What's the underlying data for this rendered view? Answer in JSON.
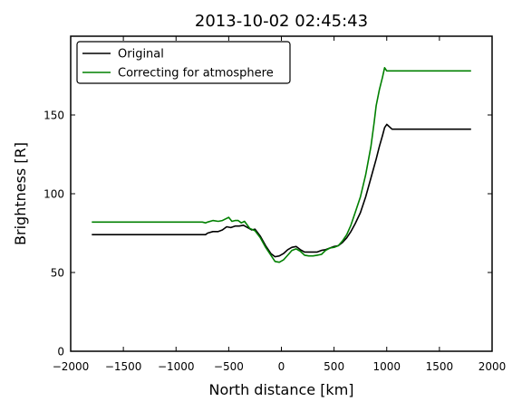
{
  "chart_data": {
    "type": "line",
    "title": "2013-10-02 02:45:43",
    "xlabel": "North distance [km]",
    "ylabel": "Brightness [R]",
    "xlim": [
      -2000,
      2000
    ],
    "ylim": [
      0,
      200
    ],
    "xticks": [
      -2000,
      -1500,
      -1000,
      -500,
      0,
      500,
      1000,
      1500,
      2000
    ],
    "xtick_labels": [
      "−2000",
      "−1500",
      "−1000",
      "−500",
      "0",
      "500",
      "1000",
      "1500",
      "2000"
    ],
    "yticks": [
      0,
      50,
      100,
      150
    ],
    "ytick_labels": [
      "0",
      "50",
      "100",
      "150"
    ],
    "grid": false,
    "legend_position": "upper-left",
    "series": [
      {
        "name": "Original",
        "color": "#000000",
        "x": [
          -1800,
          -1400,
          -1000,
          -720,
          -700,
          -650,
          -600,
          -560,
          -520,
          -480,
          -440,
          -400,
          -360,
          -320,
          -280,
          -250,
          -200,
          -150,
          -100,
          -60,
          -20,
          20,
          60,
          100,
          140,
          180,
          220,
          260,
          300,
          340,
          380,
          420,
          460,
          500,
          540,
          580,
          620,
          660,
          700,
          750,
          800,
          850,
          900,
          930,
          960,
          980,
          1000,
          1050,
          1200,
          1500,
          1800
        ],
        "y": [
          74,
          74,
          74,
          74,
          75,
          76,
          76,
          77,
          79,
          78.5,
          79.5,
          79.5,
          80,
          78.5,
          77,
          77.5,
          73,
          67,
          62,
          60,
          60.5,
          62,
          64.5,
          66,
          66.5,
          64.5,
          63,
          63,
          63,
          63,
          64,
          64.5,
          65.5,
          66.5,
          67,
          69,
          72,
          76,
          81,
          88,
          98,
          110,
          122,
          130,
          137,
          142,
          144,
          141,
          141,
          141,
          141
        ]
      },
      {
        "name": "Correcting for atmosphere",
        "color": "#008000",
        "x": [
          -1800,
          -1400,
          -1000,
          -750,
          -720,
          -700,
          -650,
          -600,
          -560,
          -530,
          -500,
          -470,
          -440,
          -410,
          -380,
          -350,
          -300,
          -250,
          -200,
          -150,
          -100,
          -60,
          -20,
          20,
          60,
          100,
          140,
          180,
          220,
          260,
          300,
          340,
          380,
          420,
          460,
          500,
          540,
          580,
          620,
          660,
          700,
          750,
          800,
          850,
          880,
          900,
          930,
          960,
          980,
          1000,
          1050,
          1200,
          1500,
          1800
        ],
        "y": [
          82,
          82,
          82,
          82,
          81.5,
          82,
          83,
          82.5,
          83,
          84,
          85,
          82.5,
          83,
          83,
          81.5,
          82.5,
          78,
          76.5,
          72,
          66,
          61,
          57,
          56.5,
          58,
          61,
          64,
          65,
          63.5,
          61,
          60.5,
          60.5,
          61,
          61.5,
          64,
          65.5,
          66,
          67,
          70,
          74,
          80,
          88,
          98,
          112,
          130,
          145,
          156,
          166,
          174,
          180,
          178,
          178,
          178,
          178,
          178
        ]
      }
    ]
  }
}
